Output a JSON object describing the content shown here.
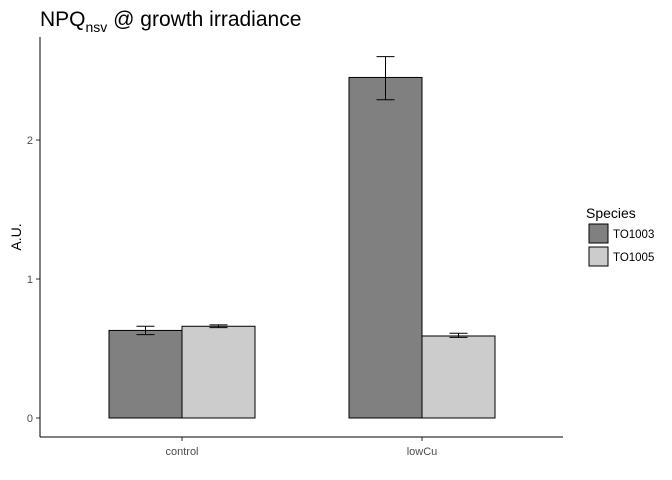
{
  "chart_data": {
    "type": "bar",
    "title": "NPQ",
    "title_subscript": "nsv",
    "title_suffix": " @ growth irradiance",
    "xlabel": "",
    "ylabel": "A.U.",
    "categories": [
      "control",
      "lowCu"
    ],
    "ylim": [
      -0.13,
      2.75
    ],
    "yticks": [
      0,
      1,
      2
    ],
    "legend": {
      "title": "Species",
      "position": "right"
    },
    "series": [
      {
        "name": "TO1003",
        "color": "#808080",
        "values": [
          0.63,
          2.45
        ],
        "err_low": [
          0.6,
          2.29
        ],
        "err_high": [
          0.66,
          2.6
        ]
      },
      {
        "name": "TO1005",
        "color": "#cccccc",
        "values": [
          0.66,
          0.59
        ],
        "err_low": [
          0.65,
          0.58
        ],
        "err_high": [
          0.67,
          0.61
        ]
      }
    ],
    "grid": false
  }
}
